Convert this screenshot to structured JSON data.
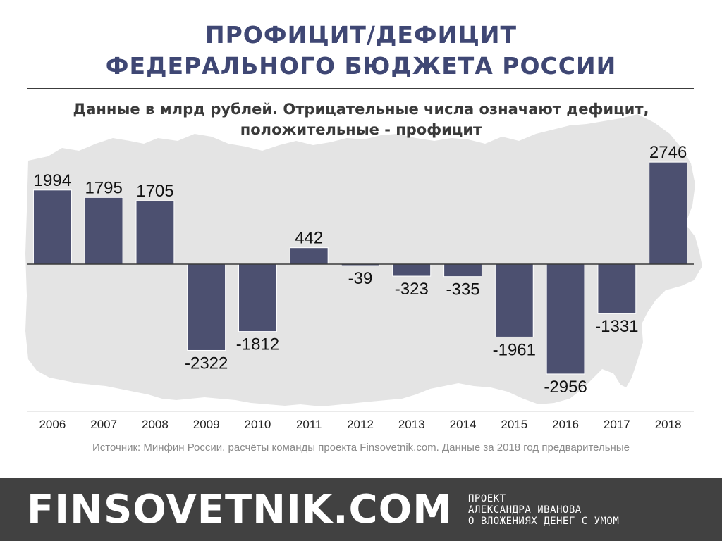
{
  "colors": {
    "title": "#3f4774",
    "subtitle": "#3a3a3a",
    "bar": "#4c5070",
    "bar_edge": "#ffffff",
    "label": "#111111",
    "tick": "#222222",
    "map": "#e4e4e4",
    "baseline": "#3a3a3a",
    "source": "#8a8a8a",
    "footer_bg": "#414141",
    "footer_text": "#ffffff"
  },
  "title_lines": [
    "ПРОФИЦИТ/ДЕФИЦИТ",
    "ФЕДЕРАЛЬНОГО БЮДЖЕТА РОССИИ"
  ],
  "subtitle_lines": [
    "Данные в млрд рублей. Отрицательные числа означают дефицит,",
    "положительные - профицит"
  ],
  "chart_data": {
    "type": "bar",
    "title": "ПРОФИЦИТ/ДЕФИЦИТ ФЕДЕРАЛЬНОГО БЮДЖЕТА РОССИИ",
    "subtitle": "Данные в млрд рублей. Отрицательные числа означают дефицит, положительные - профицит",
    "categories": [
      "2006",
      "2007",
      "2008",
      "2009",
      "2010",
      "2011",
      "2012",
      "2013",
      "2014",
      "2015",
      "2016",
      "2017",
      "2018"
    ],
    "series": [
      {
        "values": [
          1994,
          1795,
          1705,
          -2322,
          -1812,
          442,
          -39,
          -323,
          -335,
          -1961,
          -2956,
          -1331,
          2746
        ]
      }
    ],
    "ylim": [
      -4000,
      2800
    ],
    "xlabel": "",
    "ylabel": "",
    "grid": false,
    "legend": "none",
    "data_labels": true
  },
  "source_note": "Источник: Минфин России, расчёты команды проекта Finsovetnik.com. Данные за 2018 год предварительные",
  "footer": {
    "brand": "FINSOVETNIK.COM",
    "tagline_lines": [
      "ПРОЕКТ",
      "АЛЕКСАНДРА ИВАНОВА",
      "О ВЛОЖЕНИЯХ ДЕНЕГ С УМОМ"
    ]
  }
}
